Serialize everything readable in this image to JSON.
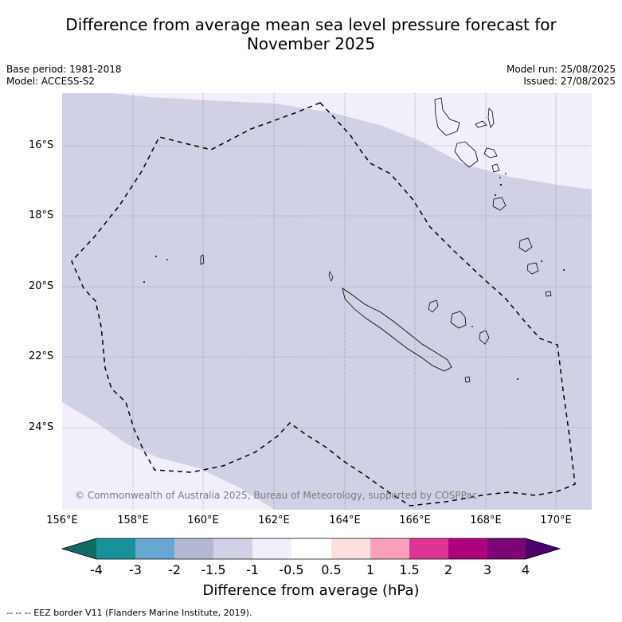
{
  "title_line1": "Difference from average mean sea level pressure forecast for",
  "title_line2": "November 2025",
  "base_period": "Base period: 1981-2018",
  "model": "Model: ACCESS-S2",
  "model_run": "Model run: 25/08/2025",
  "issued": "Issued: 27/08/2025",
  "lat_labels": [
    "16°S",
    "18°S",
    "20°S",
    "22°S",
    "24°S"
  ],
  "lon_labels": [
    "156°E",
    "158°E",
    "160°E",
    "162°E",
    "164°E",
    "166°E",
    "168°E",
    "170°E"
  ],
  "copyright": "© Commonwealth of Australia 2025, Bureau of Meteorology, supported by COSPPac",
  "colorbar": {
    "labels": [
      "-4",
      "-3",
      "-2",
      "-1.5",
      "-1",
      "-0.5",
      "0.5",
      "1",
      "1.5",
      "2",
      "3",
      "4"
    ],
    "colors": [
      "#0f6b63",
      "#1a9199",
      "#68a8d0",
      "#b5b8d3",
      "#d0d1e6",
      "#f3eff8",
      "#ffffff",
      "#fde0dd",
      "#f99fba",
      "#dd3497",
      "#ae017e",
      "#7a0177",
      "#49006a"
    ],
    "title": "Difference from average (hPa)"
  },
  "map_colors": {
    "light_pink": "#f3eff8",
    "lavender": "#d0d1e6"
  },
  "footer": "--  --  -- EEZ border V11 (Flanders Marine Institute, 2019)."
}
